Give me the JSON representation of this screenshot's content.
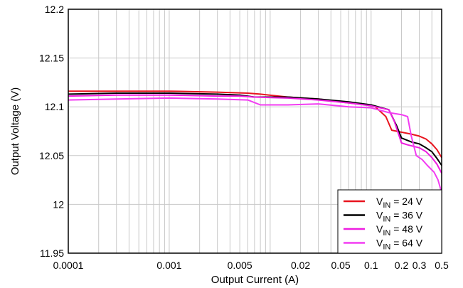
{
  "chart_data": {
    "type": "line",
    "title": "",
    "xlabel": "Output Current (A)",
    "ylabel": "Output Voltage (V)",
    "x_scale": "log",
    "xlim": [
      0.0001,
      0.5
    ],
    "ylim": [
      11.95,
      12.2
    ],
    "grid": true,
    "legend_position": "bottom-right",
    "x_ticks": [
      {
        "value": 0.0001,
        "label": "0.0001"
      },
      {
        "value": 0.001,
        "label": "0.001"
      },
      {
        "value": 0.005,
        "label": "0.005"
      },
      {
        "value": 0.02,
        "label": "0.02"
      },
      {
        "value": 0.05,
        "label": "0.05"
      },
      {
        "value": 0.1,
        "label": "0.1"
      },
      {
        "value": 0.2,
        "label": "0.2"
      },
      {
        "value": 0.3,
        "label": "0.3"
      },
      {
        "value": 0.5,
        "label": "0.5"
      }
    ],
    "y_ticks": [
      {
        "value": 11.95,
        "label": "11.95"
      },
      {
        "value": 12.0,
        "label": "12"
      },
      {
        "value": 12.05,
        "label": "12.05"
      },
      {
        "value": 12.1,
        "label": "12.1"
      },
      {
        "value": 12.15,
        "label": "12.15"
      },
      {
        "value": 12.2,
        "label": "12.2"
      }
    ],
    "series": [
      {
        "name": "V_IN = 24 V",
        "label_main": "V",
        "label_sub": "IN",
        "label_rest": " = 24 V",
        "color": "#e8141e",
        "points": [
          [
            0.0001,
            12.116
          ],
          [
            0.0003,
            12.116
          ],
          [
            0.001,
            12.116
          ],
          [
            0.003,
            12.115
          ],
          [
            0.006,
            12.114
          ],
          [
            0.008,
            12.113
          ],
          [
            0.015,
            12.11
          ],
          [
            0.03,
            12.108
          ],
          [
            0.06,
            12.104
          ],
          [
            0.09,
            12.102
          ],
          [
            0.11,
            12.1
          ],
          [
            0.14,
            12.09
          ],
          [
            0.16,
            12.076
          ],
          [
            0.2,
            12.074
          ],
          [
            0.25,
            12.072
          ],
          [
            0.3,
            12.07
          ],
          [
            0.35,
            12.067
          ],
          [
            0.4,
            12.062
          ],
          [
            0.45,
            12.056
          ],
          [
            0.5,
            12.048
          ]
        ]
      },
      {
        "name": "V_IN = 36 V",
        "label_main": "V",
        "label_sub": "IN",
        "label_rest": " = 36 V",
        "color": "#000000",
        "points": [
          [
            0.0001,
            12.113
          ],
          [
            0.0003,
            12.114
          ],
          [
            0.001,
            12.114
          ],
          [
            0.003,
            12.113
          ],
          [
            0.005,
            12.112
          ],
          [
            0.007,
            12.11
          ],
          [
            0.015,
            12.11
          ],
          [
            0.03,
            12.108
          ],
          [
            0.06,
            12.105
          ],
          [
            0.1,
            12.102
          ],
          [
            0.15,
            12.097
          ],
          [
            0.18,
            12.08
          ],
          [
            0.2,
            12.068
          ],
          [
            0.25,
            12.064
          ],
          [
            0.3,
            12.062
          ],
          [
            0.35,
            12.058
          ],
          [
            0.4,
            12.054
          ],
          [
            0.45,
            12.047
          ],
          [
            0.5,
            12.04
          ]
        ]
      },
      {
        "name": "V_IN = 48 V",
        "label_main": "V",
        "label_sub": "IN",
        "label_rest": " = 48 V",
        "color": "#ee1ee0",
        "points": [
          [
            0.0001,
            12.111
          ],
          [
            0.0003,
            12.112
          ],
          [
            0.001,
            12.112
          ],
          [
            0.003,
            12.111
          ],
          [
            0.005,
            12.111
          ],
          [
            0.007,
            12.11
          ],
          [
            0.015,
            12.109
          ],
          [
            0.03,
            12.107
          ],
          [
            0.06,
            12.104
          ],
          [
            0.1,
            12.101
          ],
          [
            0.15,
            12.097
          ],
          [
            0.17,
            12.085
          ],
          [
            0.2,
            12.063
          ],
          [
            0.23,
            12.061
          ],
          [
            0.3,
            12.058
          ],
          [
            0.35,
            12.054
          ],
          [
            0.4,
            12.048
          ],
          [
            0.45,
            12.041
          ],
          [
            0.5,
            12.032
          ]
        ]
      },
      {
        "name": "V_IN = 64 V",
        "label_main": "V",
        "label_sub": "IN",
        "label_rest": " = 64 V",
        "color": "#f23cf2",
        "points": [
          [
            0.0001,
            12.107
          ],
          [
            0.0003,
            12.108
          ],
          [
            0.001,
            12.109
          ],
          [
            0.003,
            12.108
          ],
          [
            0.006,
            12.107
          ],
          [
            0.008,
            12.102
          ],
          [
            0.015,
            12.102
          ],
          [
            0.03,
            12.103
          ],
          [
            0.06,
            12.1
          ],
          [
            0.1,
            12.099
          ],
          [
            0.15,
            12.094
          ],
          [
            0.2,
            12.092
          ],
          [
            0.23,
            12.09
          ],
          [
            0.25,
            12.07
          ],
          [
            0.28,
            12.05
          ],
          [
            0.32,
            12.046
          ],
          [
            0.36,
            12.04
          ],
          [
            0.42,
            12.033
          ],
          [
            0.46,
            12.025
          ],
          [
            0.5,
            12.012
          ]
        ]
      }
    ]
  }
}
